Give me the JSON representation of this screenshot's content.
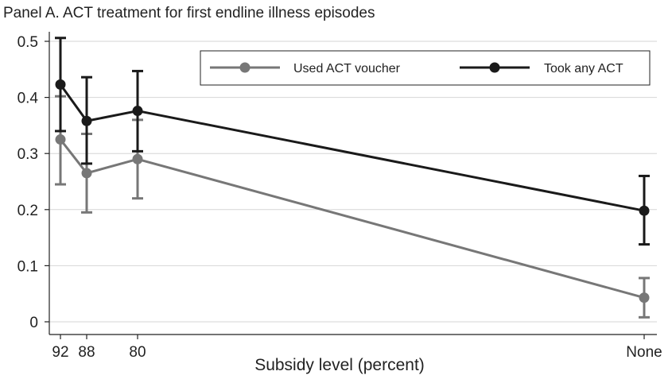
{
  "chart_data": {
    "type": "line",
    "title": "Panel A. ACT treatment for first endline illness episodes",
    "xlabel": "Subsidy level (percent)",
    "ylabel": "",
    "x_tick_labels": [
      "92",
      "88",
      "80",
      "None"
    ],
    "y_ticks": [
      "0",
      "0.1",
      "0.2",
      "0.3",
      "0.4",
      "0.5"
    ],
    "ylim": [
      0,
      0.5
    ],
    "grid": true,
    "legend": "top-right",
    "error_bars": true,
    "series": [
      {
        "name": "Used ACT voucher",
        "color": "#777777",
        "values": [
          0.325,
          0.265,
          0.29,
          0.043
        ],
        "lower": [
          0.245,
          0.195,
          0.22,
          0.008
        ],
        "upper": [
          0.402,
          0.335,
          0.36,
          0.078
        ]
      },
      {
        "name": "Took any ACT",
        "color": "#1a1a1a",
        "values": [
          0.423,
          0.358,
          0.376,
          0.198
        ],
        "lower": [
          0.34,
          0.282,
          0.304,
          0.138
        ],
        "upper": [
          0.506,
          0.436,
          0.447,
          0.26
        ]
      }
    ]
  }
}
